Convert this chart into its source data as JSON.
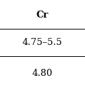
{
  "header": "Cr",
  "row1": "4.75–5.5",
  "row2": "4.80",
  "bg_color": "#ffffff",
  "text_color": "#000000",
  "line_color": "#000000",
  "header_fontsize": 9.5,
  "cell_fontsize": 9.5,
  "figsize": [
    1.21,
    1.21
  ],
  "dpi": 100
}
